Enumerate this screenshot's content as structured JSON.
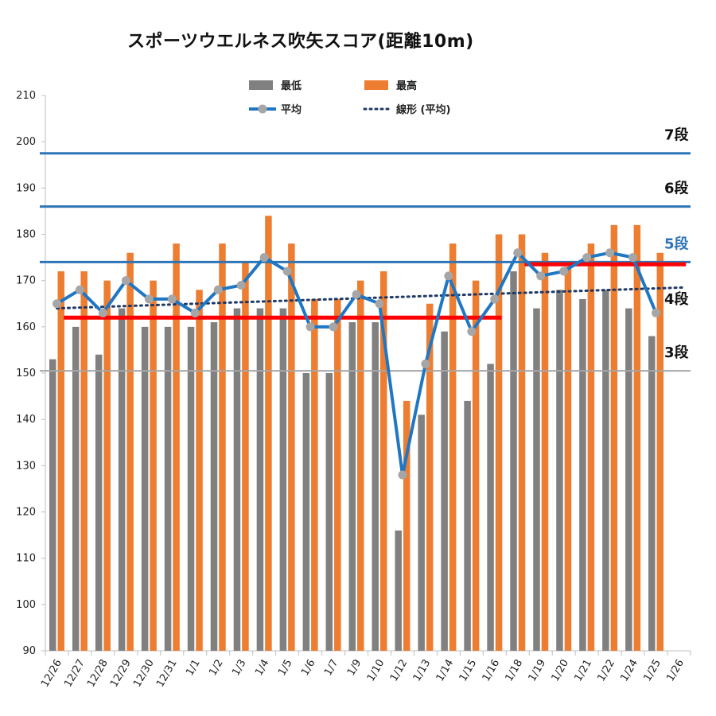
{
  "chart_data": {
    "type": "bar",
    "title": "スポーツウエルネス吹矢スコア(距離10m)",
    "xlabel": "",
    "ylabel": "",
    "ylim": [
      90,
      210
    ],
    "yticks": [
      90,
      100,
      110,
      120,
      130,
      140,
      150,
      160,
      170,
      180,
      190,
      200,
      210
    ],
    "categories": [
      "12/26",
      "12/27",
      "12/28",
      "12/29",
      "12/30",
      "12/31",
      "1/1",
      "1/2",
      "1/3",
      "1/4",
      "1/5",
      "1/6",
      "1/7",
      "1/9",
      "1/10",
      "1/12",
      "1/13",
      "1/14",
      "1/15",
      "1/16",
      "1/18",
      "1/19",
      "1/20",
      "1/21",
      "1/22",
      "1/24",
      "1/25",
      "1/26"
    ],
    "series": [
      {
        "name": "最低",
        "kind": "bar",
        "color": "#808080",
        "values": [
          153,
          160,
          154,
          164,
          160,
          160,
          160,
          161,
          164,
          164,
          164,
          150,
          150,
          161,
          161,
          116,
          141,
          159,
          144,
          152,
          172,
          164,
          168,
          166,
          168,
          164,
          158,
          null
        ]
      },
      {
        "name": "最高",
        "kind": "bar",
        "color": "#ED7D31",
        "values": [
          172,
          172,
          170,
          176,
          170,
          178,
          168,
          178,
          174,
          184,
          178,
          166,
          166,
          170,
          172,
          144,
          165,
          178,
          170,
          180,
          180,
          176,
          173,
          178,
          182,
          182,
          176,
          null
        ]
      },
      {
        "name": "平均",
        "kind": "line",
        "color": "#1F77C4",
        "marker_color": "#A6A6A6",
        "values": [
          165,
          168,
          163,
          170,
          166,
          166,
          163,
          168,
          169,
          175,
          172,
          160,
          160,
          167,
          165,
          128,
          152,
          171,
          159,
          166,
          176,
          171,
          172,
          175,
          176,
          175,
          163,
          null
        ]
      },
      {
        "name": "線形 (平均)",
        "kind": "trendline",
        "color": "#1F3864",
        "style": "dotted",
        "start": 164,
        "end": 168.5
      }
    ],
    "reference_lines": [
      {
        "label": "7段",
        "value": 197.5,
        "color": "#2E75B6",
        "label_color": "#111111"
      },
      {
        "label": "6段",
        "value": 186,
        "color": "#2E75B6",
        "label_color": "#111111"
      },
      {
        "label": "5段",
        "value": 174,
        "color": "#2E75B6",
        "label_color": "#2E75B6"
      },
      {
        "label": "4段",
        "value": 162,
        "color": "#FF0000",
        "label_color": "#111111"
      },
      {
        "label": "3段",
        "value": 150.5,
        "color": "#A6A6A6",
        "label_color": "#111111"
      }
    ],
    "segments": [
      {
        "value": 162,
        "from": "12/27",
        "to": "1/16",
        "color": "#FF0000"
      },
      {
        "value": 173.5,
        "from": "1/19",
        "to": "1/26",
        "color": "#FF0000"
      }
    ],
    "grid": false,
    "legend": "top"
  }
}
